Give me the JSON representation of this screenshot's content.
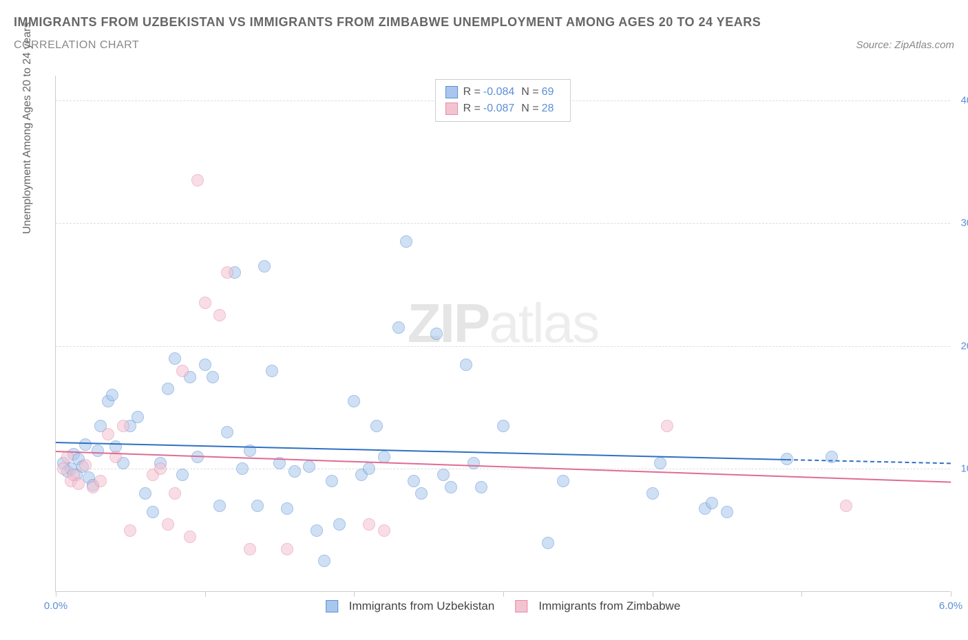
{
  "header": {
    "title": "IMMIGRANTS FROM UZBEKISTAN VS IMMIGRANTS FROM ZIMBABWE UNEMPLOYMENT AMONG AGES 20 TO 24 YEARS",
    "subtitle": "CORRELATION CHART",
    "source": "Source: ZipAtlas.com"
  },
  "chart": {
    "type": "scatter",
    "y_axis_title": "Unemployment Among Ages 20 to 24 years",
    "xlim": [
      0.0,
      6.0
    ],
    "ylim": [
      0.0,
      42.0
    ],
    "x_ticks": [
      0.0,
      1.0,
      2.0,
      3.0,
      4.0,
      5.0,
      6.0
    ],
    "x_tick_labels": {
      "0": "0.0%",
      "6": "6.0%"
    },
    "y_ticks": [
      10.0,
      20.0,
      30.0,
      40.0
    ],
    "y_tick_labels": [
      "10.0%",
      "20.0%",
      "30.0%",
      "40.0%"
    ],
    "grid_color": "#dddddd",
    "axis_color": "#cccccc",
    "background_color": "#ffffff",
    "tick_label_color": "#5b8fd6",
    "marker_radius": 9,
    "marker_opacity": 0.55,
    "watermark": {
      "bold": "ZIP",
      "light": "atlas"
    },
    "series": [
      {
        "name": "Immigrants from Uzbekistan",
        "color_fill": "#a9c7ec",
        "color_stroke": "#5b8fd6",
        "trend_color": "#2f6fc4",
        "R": "-0.084",
        "N": "69",
        "trend": {
          "x1": 0.0,
          "y1": 12.2,
          "x2": 4.9,
          "y2": 10.8,
          "dash_to": 6.0,
          "dash_y": 10.5
        },
        "points": [
          [
            0.05,
            10.5
          ],
          [
            0.08,
            9.8
          ],
          [
            0.1,
            10.0
          ],
          [
            0.12,
            11.2
          ],
          [
            0.14,
            9.5
          ],
          [
            0.15,
            10.8
          ],
          [
            0.18,
            10.2
          ],
          [
            0.2,
            12.0
          ],
          [
            0.22,
            9.3
          ],
          [
            0.25,
            8.7
          ],
          [
            0.28,
            11.5
          ],
          [
            0.3,
            13.5
          ],
          [
            0.35,
            15.5
          ],
          [
            0.38,
            16.0
          ],
          [
            0.4,
            11.8
          ],
          [
            0.45,
            10.5
          ],
          [
            0.5,
            13.5
          ],
          [
            0.55,
            14.2
          ],
          [
            0.6,
            8.0
          ],
          [
            0.65,
            6.5
          ],
          [
            0.7,
            10.5
          ],
          [
            0.75,
            16.5
          ],
          [
            0.8,
            19.0
          ],
          [
            0.85,
            9.5
          ],
          [
            0.9,
            17.5
          ],
          [
            0.95,
            11.0
          ],
          [
            1.0,
            18.5
          ],
          [
            1.05,
            17.5
          ],
          [
            1.1,
            7.0
          ],
          [
            1.15,
            13.0
          ],
          [
            1.2,
            26.0
          ],
          [
            1.25,
            10.0
          ],
          [
            1.3,
            11.5
          ],
          [
            1.35,
            7.0
          ],
          [
            1.4,
            26.5
          ],
          [
            1.45,
            18.0
          ],
          [
            1.5,
            10.5
          ],
          [
            1.55,
            6.8
          ],
          [
            1.6,
            9.8
          ],
          [
            1.7,
            10.2
          ],
          [
            1.75,
            5.0
          ],
          [
            1.8,
            2.5
          ],
          [
            1.85,
            9.0
          ],
          [
            1.9,
            5.5
          ],
          [
            2.0,
            15.5
          ],
          [
            2.05,
            9.5
          ],
          [
            2.1,
            10.0
          ],
          [
            2.15,
            13.5
          ],
          [
            2.2,
            11.0
          ],
          [
            2.3,
            21.5
          ],
          [
            2.35,
            28.5
          ],
          [
            2.4,
            9.0
          ],
          [
            2.45,
            8.0
          ],
          [
            2.55,
            21.0
          ],
          [
            2.6,
            9.5
          ],
          [
            2.65,
            8.5
          ],
          [
            2.75,
            18.5
          ],
          [
            2.8,
            10.5
          ],
          [
            2.85,
            8.5
          ],
          [
            3.0,
            13.5
          ],
          [
            3.3,
            4.0
          ],
          [
            3.4,
            9.0
          ],
          [
            4.0,
            8.0
          ],
          [
            4.05,
            10.5
          ],
          [
            4.35,
            6.8
          ],
          [
            4.4,
            7.2
          ],
          [
            4.5,
            6.5
          ],
          [
            4.9,
            10.8
          ],
          [
            5.2,
            11.0
          ]
        ]
      },
      {
        "name": "Immigrants from Zimbabwe",
        "color_fill": "#f4c3d1",
        "color_stroke": "#e68aa8",
        "trend_color": "#e06b93",
        "R": "-0.087",
        "N": "28",
        "trend": {
          "x1": 0.0,
          "y1": 11.5,
          "x2": 6.0,
          "y2": 9.0
        },
        "points": [
          [
            0.05,
            10.0
          ],
          [
            0.08,
            11.0
          ],
          [
            0.1,
            9.0
          ],
          [
            0.12,
            9.5
          ],
          [
            0.15,
            8.8
          ],
          [
            0.2,
            10.3
          ],
          [
            0.25,
            8.5
          ],
          [
            0.3,
            9.0
          ],
          [
            0.35,
            12.8
          ],
          [
            0.4,
            11.0
          ],
          [
            0.45,
            13.5
          ],
          [
            0.5,
            5.0
          ],
          [
            0.65,
            9.5
          ],
          [
            0.7,
            10.0
          ],
          [
            0.75,
            5.5
          ],
          [
            0.8,
            8.0
          ],
          [
            0.85,
            18.0
          ],
          [
            0.9,
            4.5
          ],
          [
            0.95,
            33.5
          ],
          [
            1.0,
            23.5
          ],
          [
            1.1,
            22.5
          ],
          [
            1.15,
            26.0
          ],
          [
            1.3,
            3.5
          ],
          [
            1.55,
            3.5
          ],
          [
            2.1,
            5.5
          ],
          [
            2.2,
            5.0
          ],
          [
            4.1,
            13.5
          ],
          [
            5.3,
            7.0
          ]
        ]
      }
    ],
    "legend_bottom": [
      {
        "label": "Immigrants from Uzbekistan",
        "fill": "#a9c7ec",
        "stroke": "#5b8fd6"
      },
      {
        "label": "Immigrants from Zimbabwe",
        "fill": "#f4c3d1",
        "stroke": "#e68aa8"
      }
    ]
  }
}
